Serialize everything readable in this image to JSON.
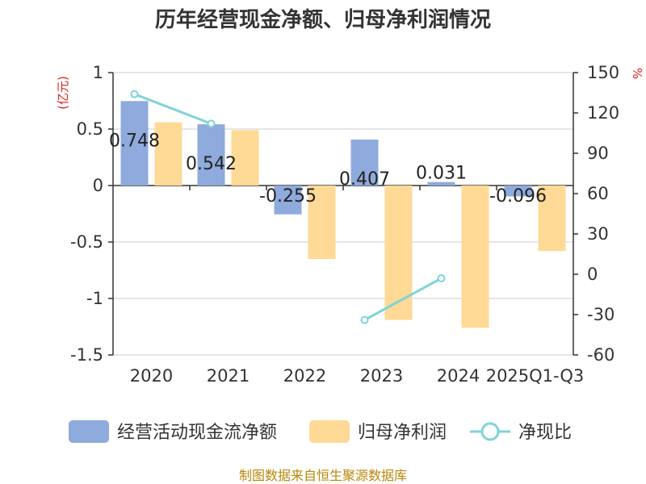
{
  "chart_data": {
    "type": "bar",
    "title": "历年经营现金净额、归母净利润情况",
    "categories": [
      "2020",
      "2021",
      "2022",
      "2023",
      "2024",
      "2025Q1-Q3"
    ],
    "y_left": {
      "label": "(亿元)",
      "ticks": [
        "1",
        "0.5",
        "0",
        "-0.5",
        "-1",
        "-1.5"
      ],
      "ylim": [
        -1.5,
        1
      ]
    },
    "y_right": {
      "label": "%",
      "ticks": [
        "150",
        "120",
        "90",
        "60",
        "30",
        "0",
        "-30",
        "-60"
      ],
      "ylim": [
        -60,
        150
      ]
    },
    "series": [
      {
        "name": "经营活动现金流净额",
        "type": "bar",
        "axis": "left",
        "color": "#8faadc",
        "values": [
          0.748,
          0.542,
          -0.255,
          0.407,
          0.031,
          -0.096
        ],
        "labels": [
          "0.748",
          "0.542",
          "-0.255",
          "0.407",
          "0.031",
          "-0.096"
        ]
      },
      {
        "name": "归母净利润",
        "type": "bar",
        "axis": "left",
        "color": "#ffd996",
        "values": [
          0.56,
          0.49,
          -0.65,
          -1.19,
          -1.26,
          -0.58
        ]
      },
      {
        "name": "净现比",
        "type": "line",
        "axis": "right",
        "color": "#7fd3d8",
        "values": [
          134,
          112,
          null,
          -34,
          -3,
          null
        ]
      }
    ],
    "grid": true,
    "legend_position": "bottom"
  },
  "footer": {
    "source": "制图数据来自恒生聚源数据库"
  }
}
